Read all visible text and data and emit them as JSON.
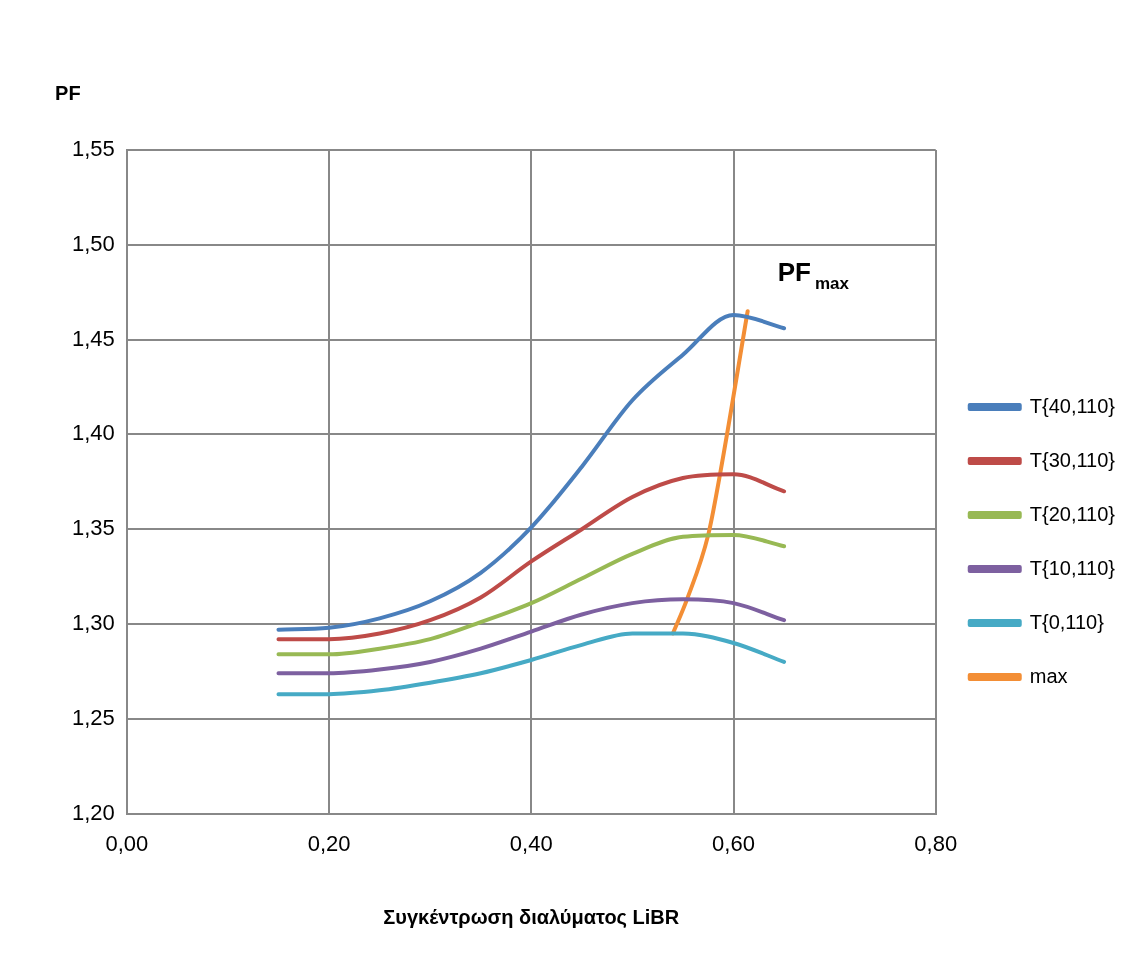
{
  "chart_data": {
    "type": "line",
    "ylabel": "PF",
    "xlabel": "Συγκέντρωση διαλύματος LiBR",
    "xlim": [
      0,
      0.8
    ],
    "xticks": [
      {
        "value": 0,
        "label": "0,00"
      },
      {
        "value": 0.2,
        "label": "0,20"
      },
      {
        "value": 0.4,
        "label": "0,40"
      },
      {
        "value": 0.6,
        "label": "0,60"
      },
      {
        "value": 0.8,
        "label": "0,80"
      }
    ],
    "ylim": [
      1.2,
      1.55
    ],
    "yticks": [
      {
        "value": 1.2,
        "label": "1,20"
      },
      {
        "value": 1.25,
        "label": "1,25"
      },
      {
        "value": 1.3,
        "label": "1,30"
      },
      {
        "value": 1.35,
        "label": "1,35"
      },
      {
        "value": 1.4,
        "label": "1,40"
      },
      {
        "value": 1.45,
        "label": "1,45"
      },
      {
        "value": 1.5,
        "label": "1,50"
      },
      {
        "value": 1.55,
        "label": "1,55"
      }
    ],
    "x": [
      0.15,
      0.2,
      0.25,
      0.3,
      0.35,
      0.4,
      0.45,
      0.5,
      0.55,
      0.6,
      0.65
    ],
    "series": [
      {
        "name": "T{40,110}",
        "color": "#4a7ebb",
        "values": [
          1.297,
          1.298,
          1.303,
          1.312,
          1.327,
          1.351,
          1.383,
          1.418,
          1.442,
          1.463,
          1.456
        ]
      },
      {
        "name": "T{30,110}",
        "color": "#be4b48",
        "values": [
          1.292,
          1.292,
          1.295,
          1.302,
          1.314,
          1.333,
          1.35,
          1.367,
          1.377,
          1.379,
          1.37
        ]
      },
      {
        "name": "T{20,110}",
        "color": "#98b954",
        "values": [
          1.284,
          1.284,
          1.287,
          1.292,
          1.301,
          1.311,
          1.324,
          1.337,
          1.346,
          1.347,
          1.341
        ]
      },
      {
        "name": "T{10,110}",
        "color": "#7d60a0",
        "values": [
          1.274,
          1.274,
          1.276,
          1.28,
          1.287,
          1.296,
          1.305,
          1.311,
          1.313,
          1.311,
          1.302
        ]
      },
      {
        "name": "T{0,110}",
        "color": "#46aac5",
        "values": [
          1.263,
          1.263,
          1.265,
          1.269,
          1.274,
          1.281,
          1.289,
          1.295,
          1.295,
          1.29,
          1.28
        ]
      },
      {
        "name": "max",
        "color": "#f38e35",
        "x": [
          0.54,
          0.554,
          0.575,
          0.587,
          0.614
        ],
        "values": [
          1.295,
          1.313,
          1.347,
          1.38,
          1.465
        ]
      }
    ],
    "annotations": [
      {
        "text": "PF$_{max}$",
        "x": 0.614,
        "y": 1.465
      }
    ],
    "grid": true,
    "legend": "right",
    "marker": "none",
    "line_style": "solid"
  }
}
